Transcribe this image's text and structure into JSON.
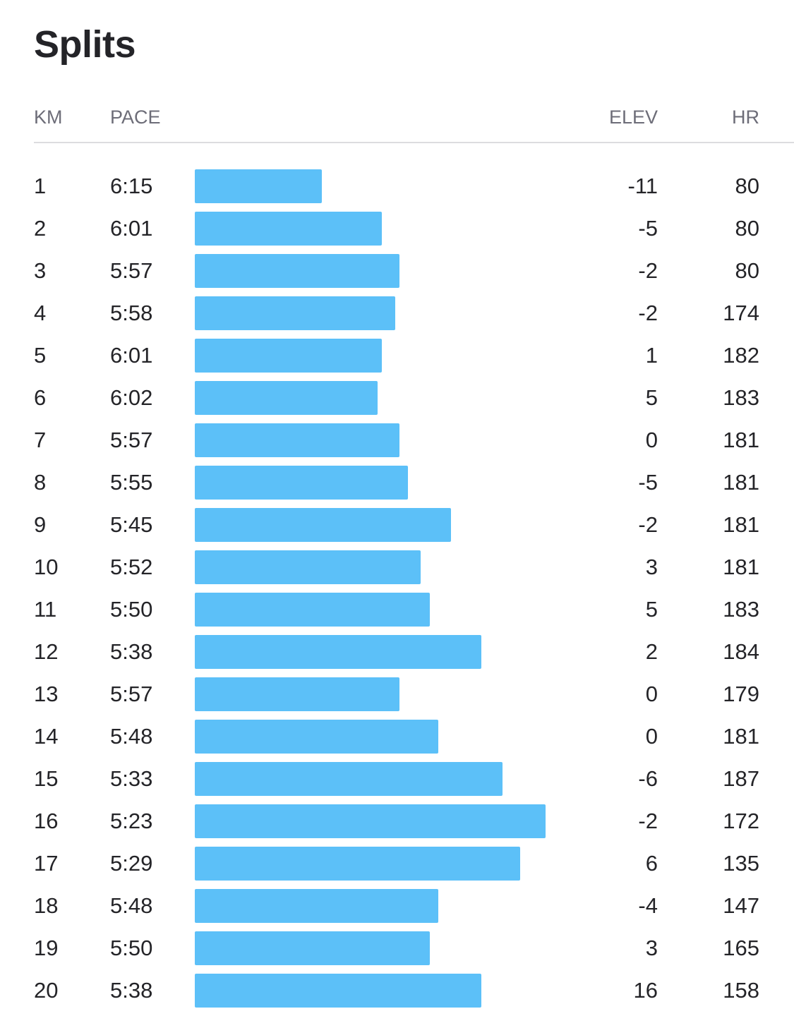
{
  "title": "Splits",
  "headers": {
    "km": "KM",
    "pace": "PACE",
    "elev": "ELEV",
    "hr": "HR"
  },
  "bar_color": "#5cc0f8",
  "splits": [
    {
      "km": "1",
      "pace": "6:15",
      "elev": "-11",
      "hr": "80"
    },
    {
      "km": "2",
      "pace": "6:01",
      "elev": "-5",
      "hr": "80"
    },
    {
      "km": "3",
      "pace": "5:57",
      "elev": "-2",
      "hr": "80"
    },
    {
      "km": "4",
      "pace": "5:58",
      "elev": "-2",
      "hr": "174"
    },
    {
      "km": "5",
      "pace": "6:01",
      "elev": "1",
      "hr": "182"
    },
    {
      "km": "6",
      "pace": "6:02",
      "elev": "5",
      "hr": "183"
    },
    {
      "km": "7",
      "pace": "5:57",
      "elev": "0",
      "hr": "181"
    },
    {
      "km": "8",
      "pace": "5:55",
      "elev": "-5",
      "hr": "181"
    },
    {
      "km": "9",
      "pace": "5:45",
      "elev": "-2",
      "hr": "181"
    },
    {
      "km": "10",
      "pace": "5:52",
      "elev": "3",
      "hr": "181"
    },
    {
      "km": "11",
      "pace": "5:50",
      "elev": "5",
      "hr": "183"
    },
    {
      "km": "12",
      "pace": "5:38",
      "elev": "2",
      "hr": "184"
    },
    {
      "km": "13",
      "pace": "5:57",
      "elev": "0",
      "hr": "179"
    },
    {
      "km": "14",
      "pace": "5:48",
      "elev": "0",
      "hr": "181"
    },
    {
      "km": "15",
      "pace": "5:33",
      "elev": "-6",
      "hr": "187"
    },
    {
      "km": "16",
      "pace": "5:23",
      "elev": "-2",
      "hr": "172"
    },
    {
      "km": "17",
      "pace": "5:29",
      "elev": "6",
      "hr": "135"
    },
    {
      "km": "18",
      "pace": "5:48",
      "elev": "-4",
      "hr": "147"
    },
    {
      "km": "19",
      "pace": "5:50",
      "elev": "3",
      "hr": "165"
    },
    {
      "km": "20",
      "pace": "5:38",
      "elev": "16",
      "hr": "158"
    }
  ]
}
